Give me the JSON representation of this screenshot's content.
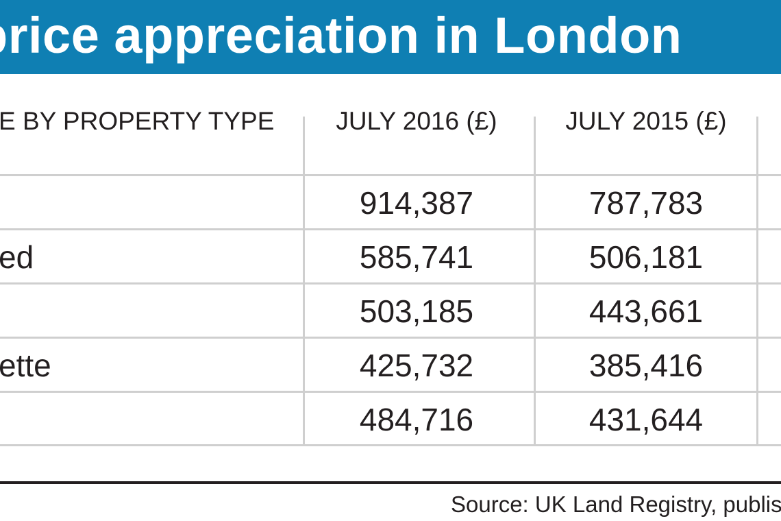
{
  "title": "price appreciation in London",
  "table": {
    "headers": [
      "E BY PROPERTY TYPE",
      "JULY 2016 (£)",
      "JULY 2015 (£)"
    ],
    "rows": [
      {
        "label": "",
        "jul2016": "914,387",
        "jul2015": "787,783"
      },
      {
        "label": "ed",
        "jul2016": "585,741",
        "jul2015": "506,181"
      },
      {
        "label": "",
        "jul2016": "503,185",
        "jul2015": "443,661"
      },
      {
        "label": "ette",
        "jul2016": "425,732",
        "jul2015": "385,416"
      },
      {
        "label": "",
        "jul2016": "484,716",
        "jul2015": "431,644"
      }
    ]
  },
  "source": "Source: UK Land Registry, publish",
  "colors": {
    "banner": "#0f7fb3",
    "rule": "#cfcfcf",
    "text": "#231f20"
  },
  "chart_data": {
    "type": "table",
    "title": "price appreciation in London",
    "columns": [
      "E BY PROPERTY TYPE",
      "JULY 2016 (£)",
      "JULY 2015 (£)"
    ],
    "rows": [
      [
        "",
        914387,
        787783
      ],
      [
        "ed",
        585741,
        506181
      ],
      [
        "",
        503185,
        443661
      ],
      [
        "ette",
        425732,
        385416
      ],
      [
        "",
        484716,
        431644
      ]
    ]
  }
}
